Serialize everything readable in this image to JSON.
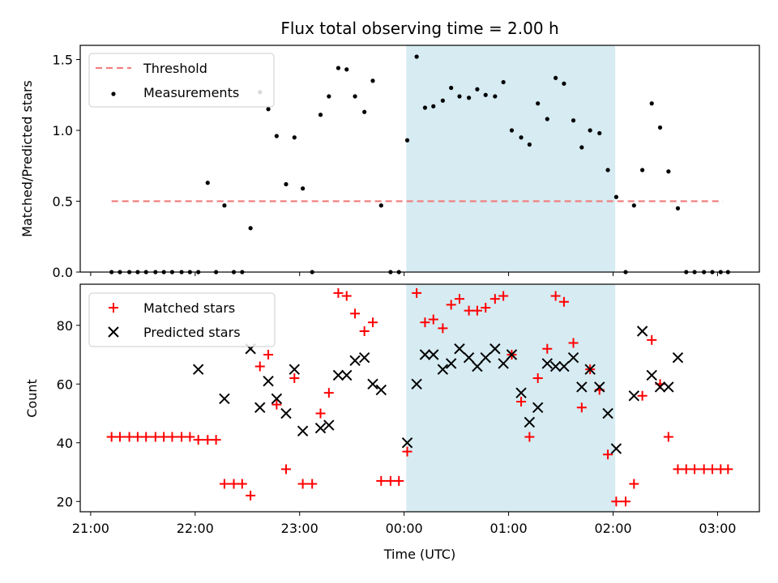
{
  "title": "Flux total observing time = 2.00 h",
  "colors": {
    "threshold": "#f08080",
    "measurements": "#000000",
    "matched": "#ff0000",
    "predicted": "#000000",
    "shade": "#add8e6"
  },
  "chart_data": [
    {
      "type": "scatter",
      "panel": "top",
      "title": "Flux total observing time = 2.00 h",
      "xlabel": "",
      "ylabel": "Matched/Predicted stars",
      "xlim_hours": [
        20.9,
        27.4
      ],
      "ylim": [
        0.0,
        1.6
      ],
      "yticks": [
        0.0,
        0.5,
        1.0,
        1.5
      ],
      "ytick_labels": [
        "0.0",
        "0.5",
        "1.0",
        "1.5"
      ],
      "shaded_interval_hours": [
        24.02,
        26.02
      ],
      "legend_position": "upper left",
      "threshold": {
        "name": "Threshold",
        "y": 0.5,
        "x_range_hours": [
          21.2,
          27.05
        ],
        "style": "dashed"
      },
      "series": [
        {
          "name": "Measurements",
          "marker": "dot",
          "x": [
            21.2,
            21.28,
            21.37,
            21.45,
            21.53,
            21.62,
            21.7,
            21.78,
            21.87,
            21.95,
            22.03,
            22.12,
            22.2,
            22.28,
            22.37,
            22.45,
            22.53,
            22.62,
            22.7,
            22.78,
            22.87,
            22.95,
            23.03,
            23.12,
            23.2,
            23.28,
            23.37,
            23.45,
            23.53,
            23.62,
            23.7,
            23.78,
            23.87,
            23.95,
            24.03,
            24.12,
            24.2,
            24.28,
            24.37,
            24.45,
            24.53,
            24.62,
            24.7,
            24.78,
            24.87,
            24.95,
            25.03,
            25.12,
            25.2,
            25.28,
            25.37,
            25.45,
            25.53,
            25.62,
            25.7,
            25.78,
            25.87,
            25.95,
            26.03,
            26.12,
            26.2,
            26.28,
            26.37,
            26.45,
            26.53,
            26.62,
            26.7,
            26.78,
            26.87,
            26.95,
            27.03,
            27.1
          ],
          "y": [
            0,
            0,
            0,
            0,
            0,
            0,
            0,
            0,
            0,
            0,
            0,
            0.63,
            0,
            0.47,
            0,
            0,
            0.31,
            1.27,
            1.15,
            0.96,
            0.62,
            0.95,
            0.59,
            0,
            1.11,
            1.24,
            1.44,
            1.43,
            1.24,
            1.13,
            1.35,
            0.47,
            0,
            0,
            0.93,
            1.52,
            1.16,
            1.17,
            1.21,
            1.3,
            1.24,
            1.23,
            1.29,
            1.25,
            1.24,
            1.34,
            1.0,
            0.95,
            0.9,
            1.19,
            1.08,
            1.37,
            1.33,
            1.07,
            0.88,
            1.0,
            0.98,
            0.72,
            0.53,
            0,
            0.47,
            0.72,
            1.19,
            1.02,
            0.71,
            0.45,
            0,
            0,
            0,
            0,
            0,
            0
          ]
        }
      ],
      "vals_note": ""
    },
    {
      "type": "scatter",
      "panel": "bottom",
      "xlabel": "Time (UTC)",
      "ylabel": "Count",
      "xlim_hours": [
        20.9,
        27.4
      ],
      "ylim": [
        16.5,
        94
      ],
      "yticks": [
        20,
        40,
        60,
        80
      ],
      "ytick_labels": [
        "20",
        "40",
        "60",
        "80"
      ],
      "xticks_hours": [
        21,
        22,
        23,
        24,
        25,
        26,
        27
      ],
      "xtick_labels": [
        "21:00",
        "22:00",
        "23:00",
        "00:00",
        "01:00",
        "02:00",
        "03:00"
      ],
      "shaded_interval_hours": [
        24.02,
        26.02
      ],
      "legend_position": "upper left",
      "series": [
        {
          "name": "Matched stars",
          "marker": "plus",
          "x": [
            21.2,
            21.28,
            21.37,
            21.45,
            21.53,
            21.62,
            21.7,
            21.78,
            21.87,
            21.95,
            22.03,
            22.12,
            22.2,
            22.28,
            22.37,
            22.45,
            22.53,
            22.62,
            22.7,
            22.78,
            22.87,
            22.95,
            23.03,
            23.12,
            23.2,
            23.28,
            23.37,
            23.45,
            23.53,
            23.62,
            23.7,
            23.78,
            23.87,
            23.95,
            24.03,
            24.12,
            24.2,
            24.28,
            24.37,
            24.45,
            24.53,
            24.62,
            24.7,
            24.78,
            24.87,
            24.95,
            25.03,
            25.12,
            25.2,
            25.28,
            25.37,
            25.45,
            25.53,
            25.62,
            25.7,
            25.78,
            25.87,
            25.95,
            26.03,
            26.12,
            26.2,
            26.28,
            26.37,
            26.45,
            26.53,
            26.62,
            26.7,
            26.78,
            26.87,
            26.95,
            27.03,
            27.1
          ],
          "y": [
            42,
            42,
            42,
            42,
            42,
            42,
            42,
            42,
            42,
            42,
            41,
            41,
            41,
            26,
            26,
            26,
            22,
            66,
            70,
            53,
            31,
            62,
            26,
            26,
            50,
            57,
            91,
            90,
            84,
            78,
            81,
            27,
            27,
            27,
            37,
            91,
            81,
            82,
            79,
            87,
            89,
            85,
            85,
            86,
            89,
            90,
            70,
            54,
            42,
            62,
            72,
            90,
            88,
            74,
            52,
            65,
            58,
            36,
            20,
            20,
            26,
            56,
            75,
            60,
            42,
            31,
            31,
            31,
            31,
            31,
            31,
            31
          ]
        },
        {
          "name": "Predicted stars",
          "marker": "x",
          "x": [
            22.03,
            22.28,
            22.53,
            22.62,
            22.7,
            22.78,
            22.87,
            22.95,
            23.03,
            23.2,
            23.28,
            23.37,
            23.45,
            23.53,
            23.62,
            23.7,
            23.78,
            24.03,
            24.12,
            24.2,
            24.28,
            24.37,
            24.45,
            24.53,
            24.62,
            24.7,
            24.78,
            24.87,
            24.95,
            25.03,
            25.12,
            25.2,
            25.28,
            25.37,
            25.45,
            25.53,
            25.62,
            25.7,
            25.78,
            25.87,
            25.95,
            26.03,
            26.2,
            26.28,
            26.37,
            26.45,
            26.53,
            26.62
          ],
          "y": [
            65,
            55,
            72,
            52,
            61,
            55,
            50,
            65,
            44,
            45,
            46,
            63,
            63,
            68,
            69,
            60,
            58,
            40,
            60,
            70,
            70,
            65,
            67,
            72,
            69,
            66,
            69,
            72,
            67,
            70,
            57,
            47,
            52,
            67,
            66,
            66,
            69,
            59,
            65,
            59,
            50,
            38,
            56,
            78,
            63,
            59,
            59,
            69
          ]
        }
      ]
    }
  ]
}
